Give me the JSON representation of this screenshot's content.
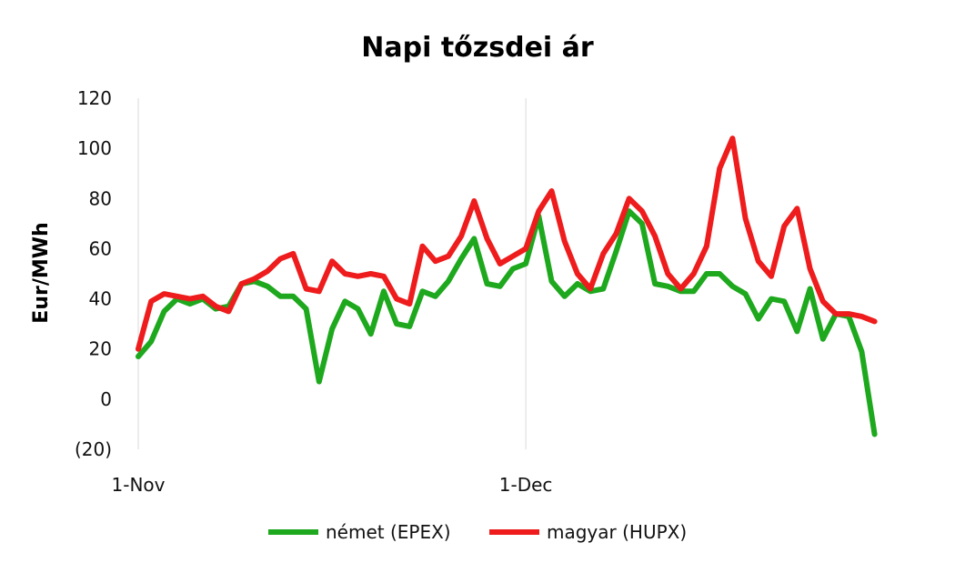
{
  "chart_data": {
    "type": "line",
    "title": "Napi tőzsdei ár",
    "xlabel": "",
    "ylabel": "Eur/MWh",
    "ylim": [
      -20,
      120
    ],
    "y_ticks": [
      {
        "value": 120,
        "label": "120",
        "color": "#111111"
      },
      {
        "value": 100,
        "label": "100",
        "color": "#111111"
      },
      {
        "value": 80,
        "label": "80",
        "color": "#111111"
      },
      {
        "value": 60,
        "label": "60",
        "color": "#111111"
      },
      {
        "value": 40,
        "label": "40",
        "color": "#111111"
      },
      {
        "value": 20,
        "label": "20",
        "color": "#111111"
      },
      {
        "value": 0,
        "label": "0",
        "color": "#111111"
      },
      {
        "value": -20,
        "label": "(20)",
        "color": "#e8231f"
      }
    ],
    "x_ticks": [
      {
        "day": 1,
        "label": "1-Nov"
      },
      {
        "day": 31,
        "label": "1-Dec"
      }
    ],
    "x_range": [
      1,
      60
    ],
    "grid": "vertical-at-x-ticks",
    "legend": "bottom",
    "series": [
      {
        "name": "német (EPEX)",
        "color": "#1ea81e",
        "values": [
          17,
          23,
          35,
          40,
          38,
          40,
          36,
          37,
          46,
          47,
          45,
          41,
          41,
          36,
          7,
          28,
          39,
          36,
          26,
          43,
          30,
          29,
          43,
          41,
          47,
          56,
          64,
          46,
          45,
          52,
          54,
          73,
          47,
          41,
          46,
          43,
          44,
          59,
          75,
          70,
          46,
          45,
          43,
          43,
          50,
          50,
          45,
          42,
          32,
          40,
          39,
          27,
          44,
          24,
          34,
          33,
          19,
          -14
        ]
      },
      {
        "name": "magyar (HUPX)",
        "color": "#ee1c1c",
        "values": [
          20,
          39,
          42,
          41,
          40,
          41,
          37,
          35,
          46,
          48,
          51,
          56,
          58,
          44,
          43,
          55,
          50,
          49,
          50,
          49,
          40,
          38,
          61,
          55,
          57,
          65,
          79,
          64,
          54,
          57,
          60,
          75,
          83,
          63,
          50,
          44,
          58,
          66,
          80,
          75,
          65,
          50,
          44,
          50,
          61,
          92,
          104,
          72,
          55,
          49,
          69,
          76,
          52,
          39,
          34,
          34,
          33,
          31
        ]
      }
    ]
  }
}
